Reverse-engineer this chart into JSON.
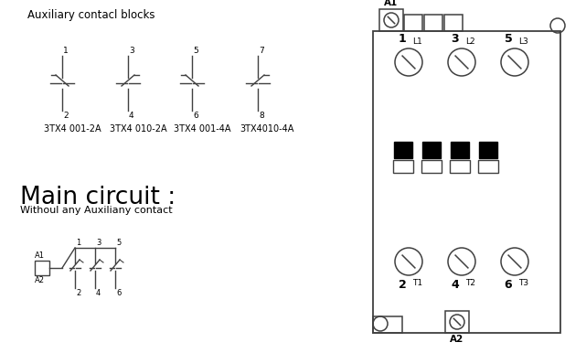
{
  "bg_color": "#ffffff",
  "line_color": "#404040",
  "text_color": "#000000",
  "title_aux": "Auxiliary contacl blocks",
  "aux_labels": [
    "3TX4 001-2A",
    "3TX4 010-2A",
    "3TX4 001-4A",
    "3TX4010-4A"
  ],
  "main_title": "Main circuit :",
  "main_sub": "Withoul any Auxiliany contact",
  "a1_label": "A1",
  "a2_label": "A2",
  "top_nums": [
    "1",
    "3",
    "5"
  ],
  "top_subs": [
    "L1",
    "L2",
    "L3"
  ],
  "bot_nums": [
    "2",
    "4",
    "6"
  ],
  "bot_subs": [
    "T1",
    "T2",
    "T3"
  ],
  "figw": 6.41,
  "figh": 3.86,
  "dpi": 100
}
